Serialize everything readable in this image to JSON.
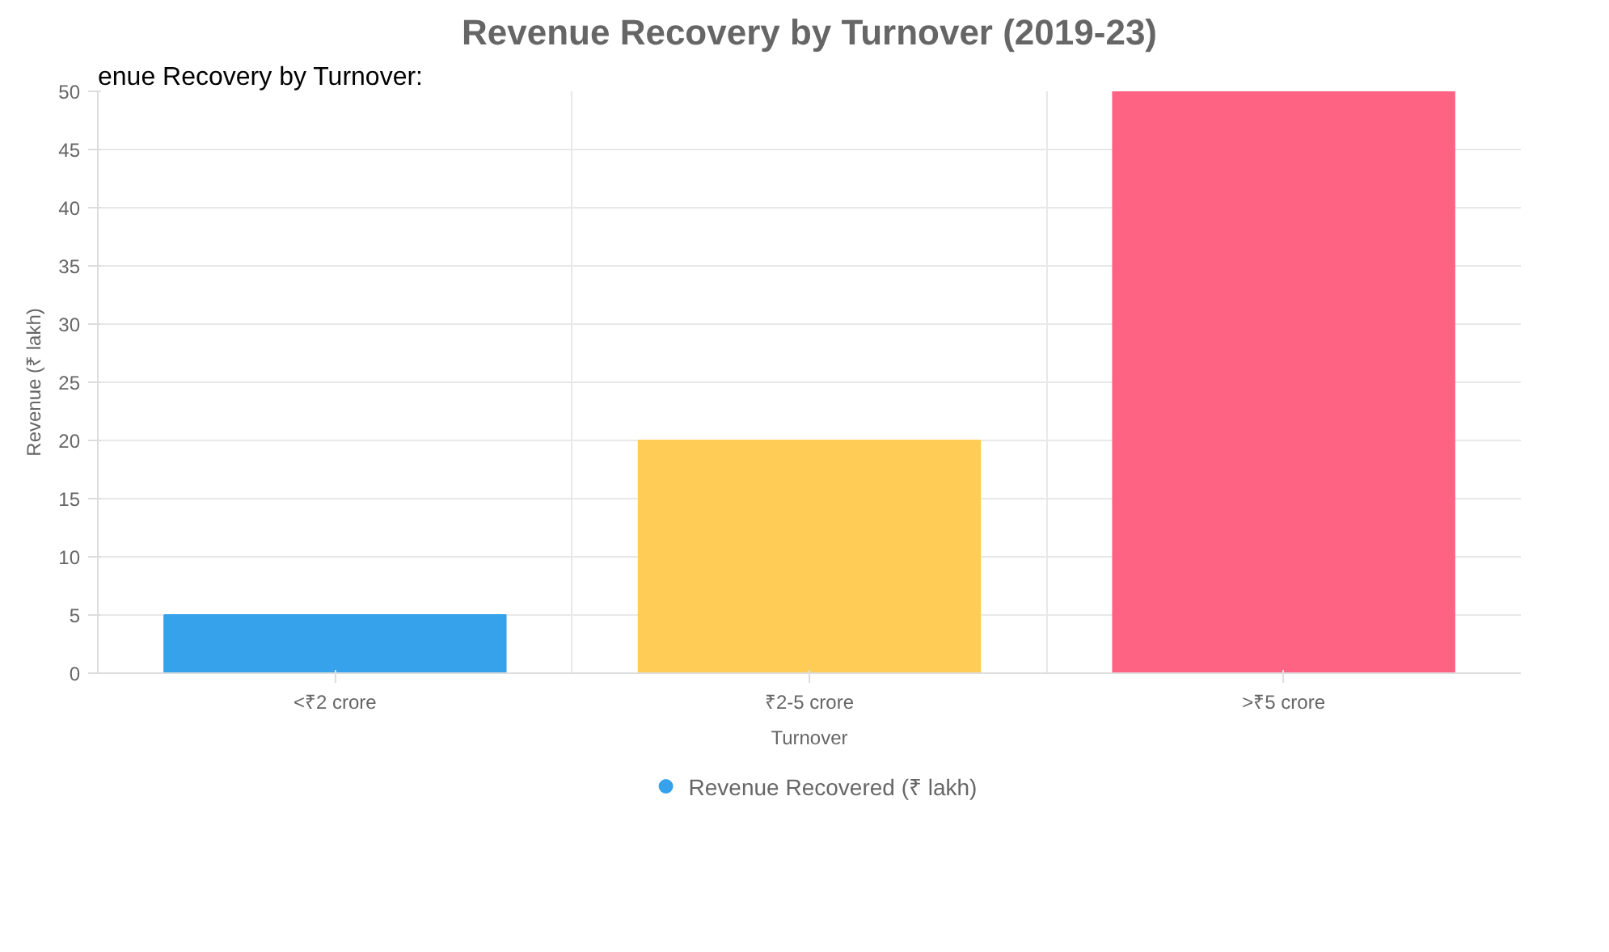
{
  "chart_data": {
    "type": "bar",
    "title": "Revenue Recovery by Turnover (2019-23)",
    "xlabel": "Turnover",
    "ylabel": "Revenue (₹ lakh)",
    "categories": [
      "<₹2 crore",
      "₹2-5 crore",
      ">₹5 crore"
    ],
    "series": [
      {
        "name": "Revenue Recovered (₹ lakh)",
        "color": "#36a2eb",
        "colors": [
          "#36a2eb",
          "#ffcd56",
          "#ff6384"
        ],
        "values": [
          5,
          20,
          50
        ]
      }
    ],
    "ylim": [
      0,
      50
    ],
    "yticks": [
      0,
      5,
      10,
      15,
      20,
      25,
      30,
      35,
      40,
      45,
      50
    ],
    "grid": true,
    "legend": "bottom",
    "annotations": [
      "enue Recovery by Turnover:"
    ]
  }
}
